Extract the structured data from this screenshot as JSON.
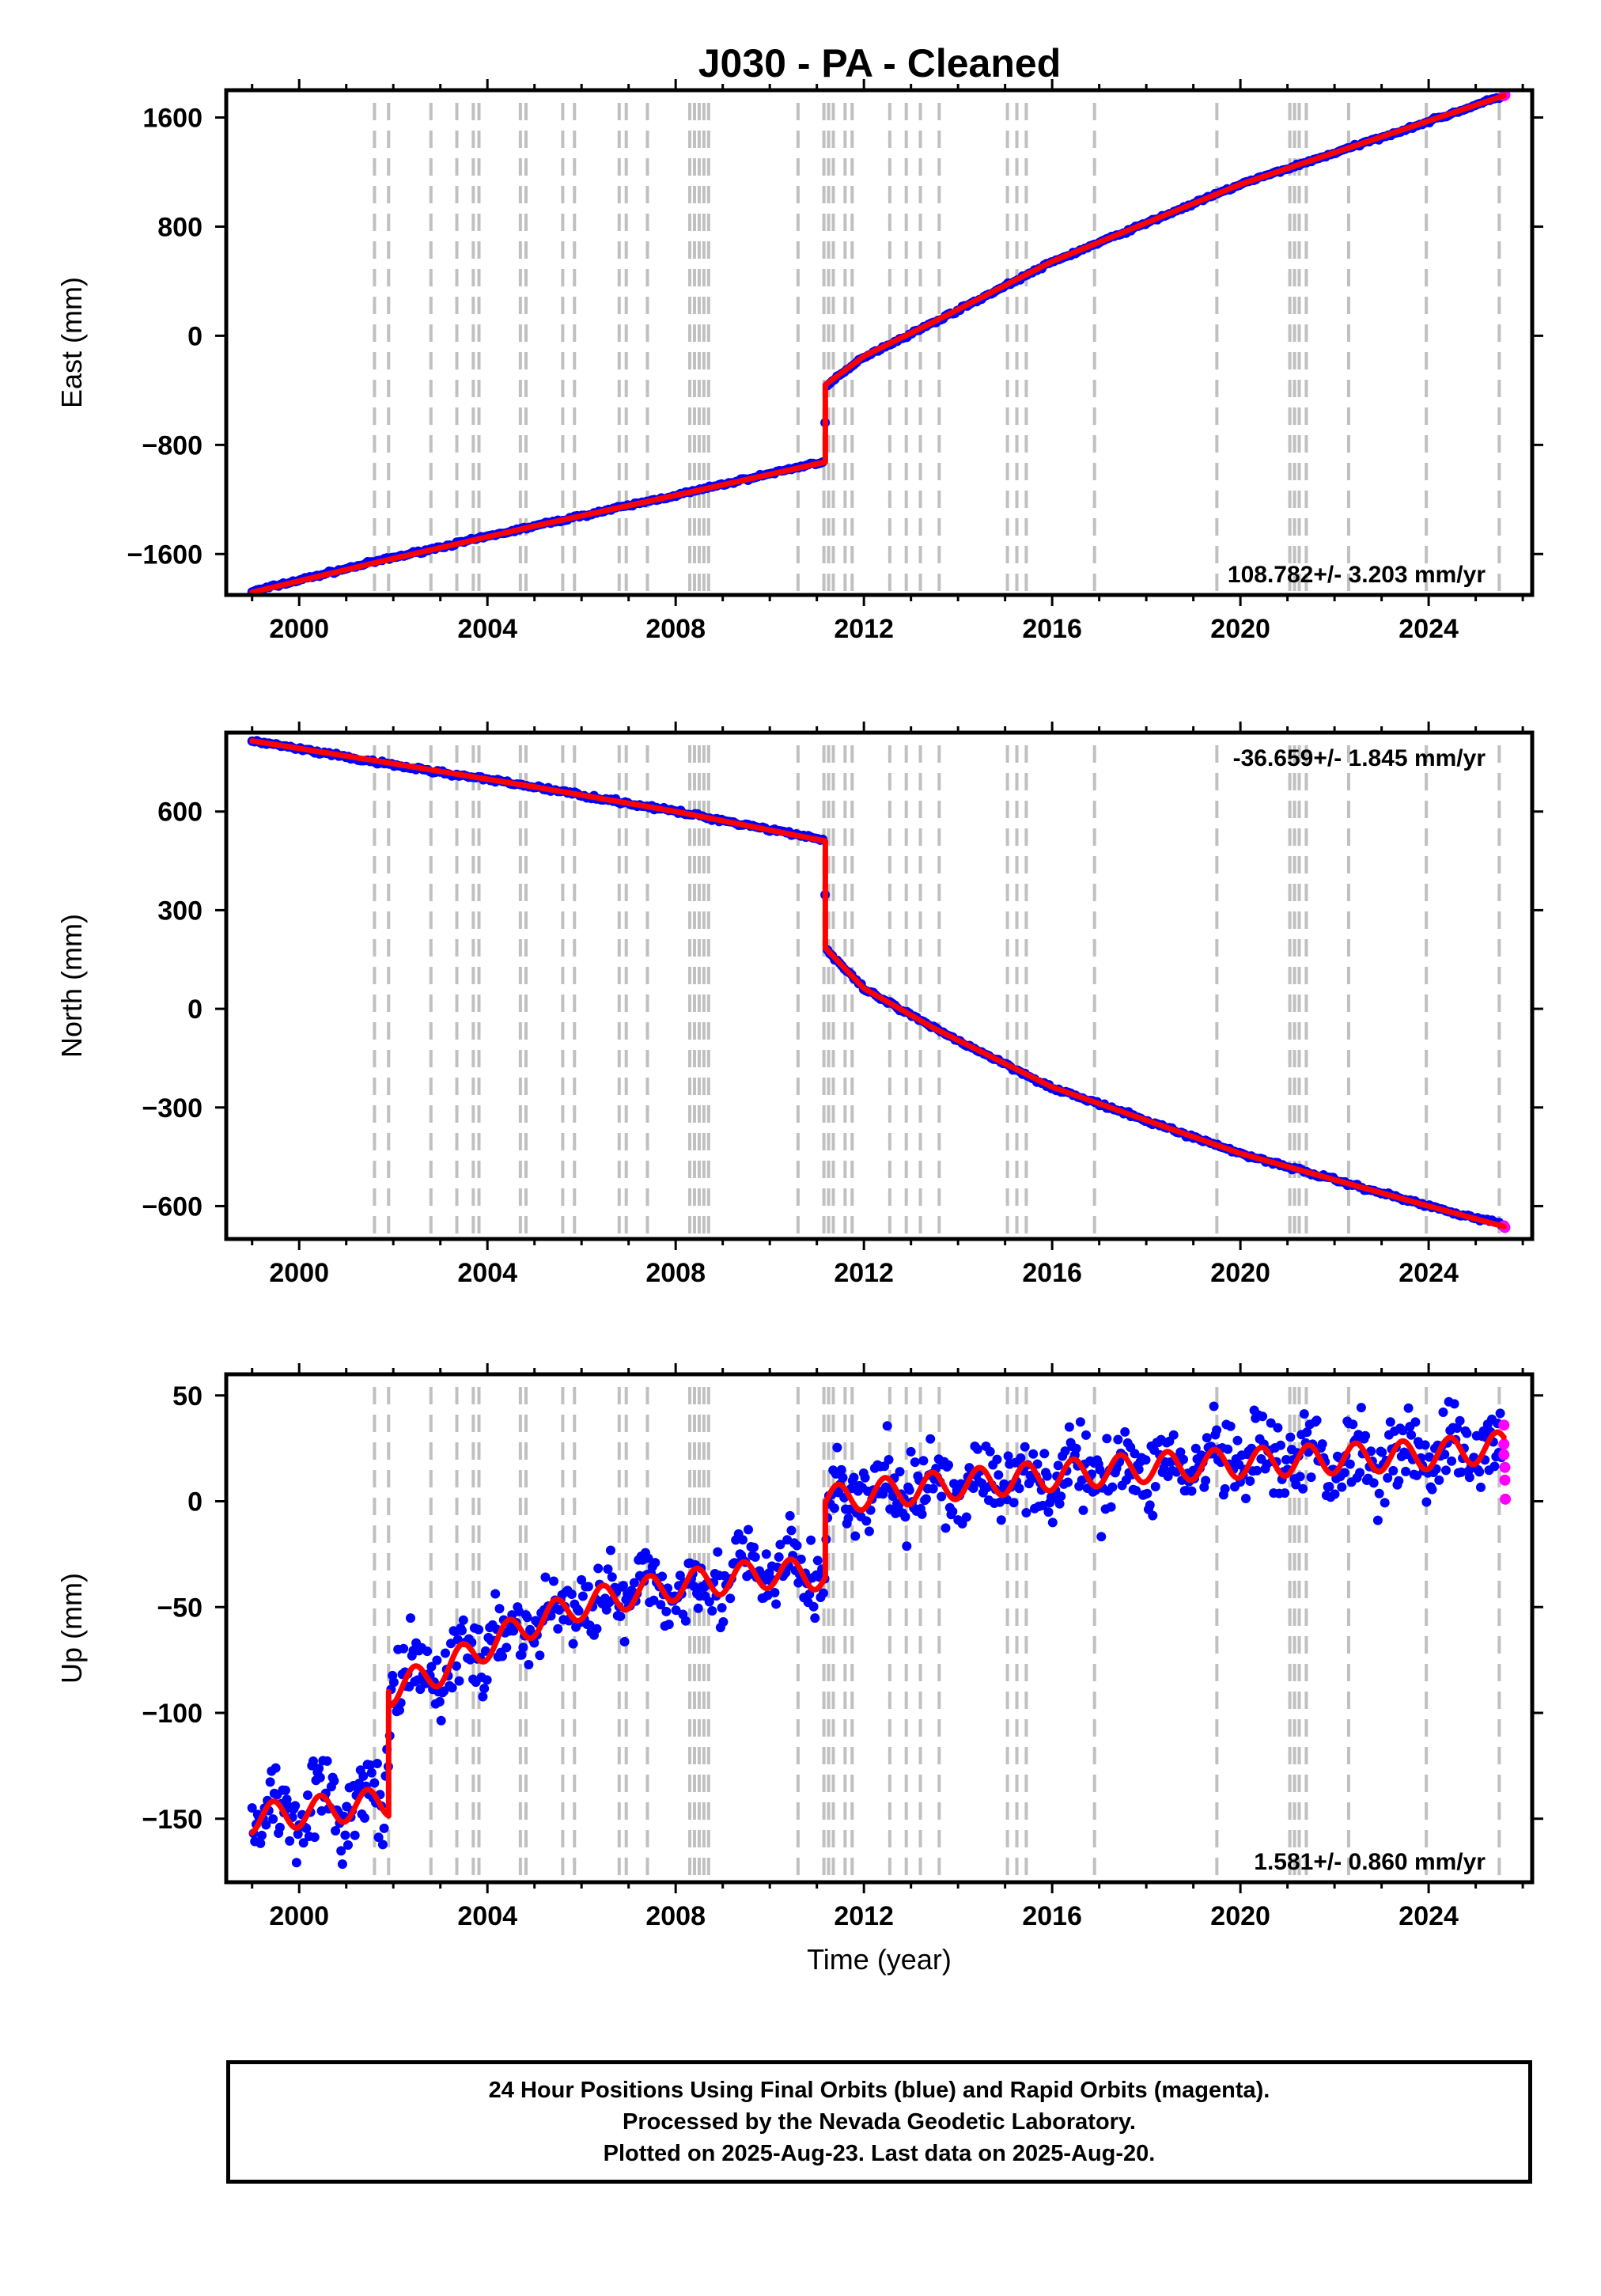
{
  "title": "J030  - PA - Cleaned",
  "colors": {
    "final_orbits": "#0000ff",
    "rapid_orbits": "#ff00ff",
    "model": "#ff0000",
    "event_lines": "#c0c0c0",
    "axes": "#000000"
  },
  "footer": {
    "line1": "24 Hour Positions Using Final Orbits (blue) and Rapid Orbits (magenta).",
    "line2": "Processed by the Nevada Geodetic Laboratory.",
    "line3": "Plotted on 2025-Aug-23. Last data on 2025-Aug-20."
  },
  "chart_data": [
    {
      "type": "scatter",
      "component": "East",
      "ylabel": "East (mm)",
      "xlabel": "",
      "xlim": [
        1998.45,
        2026.2
      ],
      "ylim": [
        -1900,
        1800
      ],
      "x_ticks": [
        "2000",
        "2004",
        "2008",
        "2012",
        "2016",
        "2020",
        "2024"
      ],
      "y_ticks": [
        "1600",
        "800",
        "0",
        "−800",
        "−1600"
      ],
      "y_tick_values": [
        1600,
        800,
        0,
        -800,
        -1600
      ],
      "rate_text": "108.782+/- 3.203 mm/yr",
      "event_lines": [
        2001.6,
        2001.9,
        2002.8,
        2003.35,
        2003.7,
        2003.82,
        2004.7,
        2004.82,
        2005.6,
        2005.85,
        2006.8,
        2006.95,
        2007.4,
        2008.3,
        2008.4,
        2008.5,
        2008.6,
        2008.7,
        2010.6,
        2011.15,
        2011.25,
        2011.35,
        2011.6,
        2011.75,
        2012.55,
        2012.9,
        2013.2,
        2013.6,
        2015.05,
        2015.25,
        2015.45,
        2016.9,
        2019.5,
        2021.05,
        2021.15,
        2021.25,
        2021.4,
        2022.3,
        2023.95,
        2025.5
      ],
      "series": [
        {
          "name": "Final Orbits",
          "points": [
            [
              1999.0,
              -1875
            ],
            [
              2001.5,
              -1665
            ],
            [
              2005.0,
              -1395
            ],
            [
              2008.0,
              -1170
            ],
            [
              2011.15,
              -920
            ],
            [
              2011.2,
              -370
            ],
            [
              2012.0,
              -155
            ],
            [
              2013.5,
              100
            ],
            [
              2016.0,
              540
            ],
            [
              2020.0,
              1110
            ],
            [
              2024.0,
              1570
            ],
            [
              2025.55,
              1755
            ]
          ]
        },
        {
          "name": "Rapid Orbits",
          "points": [
            [
              2025.6,
              1760
            ],
            [
              2025.62,
              1765
            ]
          ]
        }
      ],
      "model": [
        [
          1999.0,
          -1880
        ],
        [
          2001.6,
          -1665
        ],
        [
          2005.0,
          -1395
        ],
        [
          2008.0,
          -1170
        ],
        [
          2011.18,
          -925
        ],
        [
          2011.18,
          -360
        ],
        [
          2012.0,
          -150
        ],
        [
          2013.5,
          105
        ],
        [
          2016.0,
          545
        ],
        [
          2020.0,
          1110
        ],
        [
          2024.0,
          1575
        ],
        [
          2025.6,
          1760
        ]
      ]
    },
    {
      "type": "scatter",
      "component": "North",
      "ylabel": "North (mm)",
      "xlabel": "",
      "xlim": [
        1998.45,
        2026.2
      ],
      "ylim": [
        -700,
        840
      ],
      "x_ticks": [
        "2000",
        "2004",
        "2008",
        "2012",
        "2016",
        "2020",
        "2024"
      ],
      "y_ticks": [
        "600",
        "300",
        "0",
        "−300",
        "−600"
      ],
      "y_tick_values": [
        600,
        300,
        0,
        -300,
        -600
      ],
      "rate_text": "-36.659+/- 1.845 mm/yr",
      "event_lines": [
        2001.6,
        2001.9,
        2002.8,
        2003.35,
        2003.7,
        2003.82,
        2004.7,
        2004.82,
        2005.6,
        2005.85,
        2006.8,
        2006.95,
        2007.4,
        2008.3,
        2008.4,
        2008.5,
        2008.6,
        2008.7,
        2010.6,
        2011.15,
        2011.25,
        2011.35,
        2011.6,
        2011.75,
        2012.55,
        2012.9,
        2013.2,
        2013.6,
        2015.05,
        2015.25,
        2015.45,
        2016.9,
        2019.5,
        2021.05,
        2021.15,
        2021.25,
        2021.4,
        2022.3,
        2023.95,
        2025.5
      ],
      "series": [
        {
          "name": "Final Orbits",
          "points": [
            [
              1999.0,
              815
            ],
            [
              2001.6,
              750
            ],
            [
              2005.0,
              675
            ],
            [
              2008.0,
              600
            ],
            [
              2011.15,
              515
            ],
            [
              2011.2,
              180
            ],
            [
              2012.0,
              60
            ],
            [
              2013.5,
              -60
            ],
            [
              2016.0,
              -240
            ],
            [
              2020.0,
              -440
            ],
            [
              2024.0,
              -600
            ],
            [
              2025.55,
              -655
            ]
          ]
        },
        {
          "name": "Rapid Orbits",
          "points": [
            [
              2025.6,
              -660
            ],
            [
              2025.62,
              -665
            ]
          ]
        }
      ],
      "model": [
        [
          1999.0,
          815
        ],
        [
          2001.6,
          755
        ],
        [
          2005.0,
          675
        ],
        [
          2008.0,
          600
        ],
        [
          2011.18,
          510
        ],
        [
          2011.18,
          185
        ],
        [
          2012.0,
          62
        ],
        [
          2013.5,
          -60
        ],
        [
          2016.0,
          -238
        ],
        [
          2020.0,
          -440
        ],
        [
          2024.0,
          -600
        ],
        [
          2025.6,
          -662
        ]
      ]
    },
    {
      "type": "scatter",
      "component": "Up",
      "ylabel": "Up (mm)",
      "xlabel": "Time (year)",
      "xlim": [
        1998.45,
        2026.2
      ],
      "ylim": [
        -180,
        60
      ],
      "x_ticks": [
        "2000",
        "2004",
        "2008",
        "2012",
        "2016",
        "2020",
        "2024"
      ],
      "y_ticks": [
        "50",
        "0",
        "−50",
        "−100",
        "−150"
      ],
      "y_tick_values": [
        50,
        0,
        -50,
        -100,
        -150
      ],
      "rate_text": "1.581+/- 0.860 mm/yr",
      "event_lines": [
        2001.6,
        2001.9,
        2002.8,
        2003.35,
        2003.7,
        2003.82,
        2004.7,
        2004.82,
        2005.6,
        2005.85,
        2006.8,
        2006.95,
        2007.4,
        2008.3,
        2008.4,
        2008.5,
        2008.6,
        2008.7,
        2010.6,
        2011.15,
        2011.25,
        2011.35,
        2011.6,
        2011.75,
        2012.55,
        2012.9,
        2013.2,
        2013.6,
        2015.05,
        2015.25,
        2015.45,
        2016.9,
        2019.5,
        2021.05,
        2021.15,
        2021.25,
        2021.4,
        2022.3,
        2023.95,
        2025.5
      ],
      "series": [
        {
          "name": "Final Orbits",
          "points": [
            [
              1999.0,
              -150
            ],
            [
              2000.0,
              -142
            ],
            [
              2001.0,
              -145
            ],
            [
              2001.85,
              -140
            ],
            [
              2001.95,
              -88
            ],
            [
              2003.0,
              -80
            ],
            [
              2004.0,
              -68
            ],
            [
              2005.0,
              -57
            ],
            [
              2006.0,
              -48
            ],
            [
              2007.0,
              -44
            ],
            [
              2008.0,
              -40
            ],
            [
              2009.0,
              -36
            ],
            [
              2010.0,
              -33
            ],
            [
              2011.15,
              -34
            ],
            [
              2011.25,
              0
            ],
            [
              2012.0,
              3
            ],
            [
              2014.0,
              8
            ],
            [
              2016.0,
              12
            ],
            [
              2018.0,
              16
            ],
            [
              2020.0,
              18
            ],
            [
              2022.0,
              20
            ],
            [
              2024.0,
              23
            ],
            [
              2025.55,
              24
            ]
          ]
        },
        {
          "name": "Rapid Orbits",
          "points": [
            [
              2025.6,
              36
            ],
            [
              2025.6,
              27
            ],
            [
              2025.6,
              22
            ],
            [
              2025.62,
              16
            ],
            [
              2025.62,
              10
            ],
            [
              2025.63,
              1
            ]
          ]
        }
      ],
      "model": [
        [
          1999.0,
          -150
        ],
        [
          2001.9,
          -142
        ],
        [
          2001.9,
          -90
        ],
        [
          2003.0,
          -80
        ],
        [
          2004.0,
          -68
        ],
        [
          2005.0,
          -57
        ],
        [
          2006.0,
          -49
        ],
        [
          2007.0,
          -44
        ],
        [
          2008.0,
          -40
        ],
        [
          2009.0,
          -37
        ],
        [
          2010.0,
          -34
        ],
        [
          2011.18,
          -35
        ],
        [
          2011.18,
          0
        ],
        [
          2012.0,
          3
        ],
        [
          2014.0,
          8
        ],
        [
          2016.0,
          12
        ],
        [
          2018.0,
          16
        ],
        [
          2020.0,
          18
        ],
        [
          2022.0,
          20
        ],
        [
          2024.0,
          22
        ],
        [
          2025.6,
          26
        ]
      ]
    }
  ]
}
